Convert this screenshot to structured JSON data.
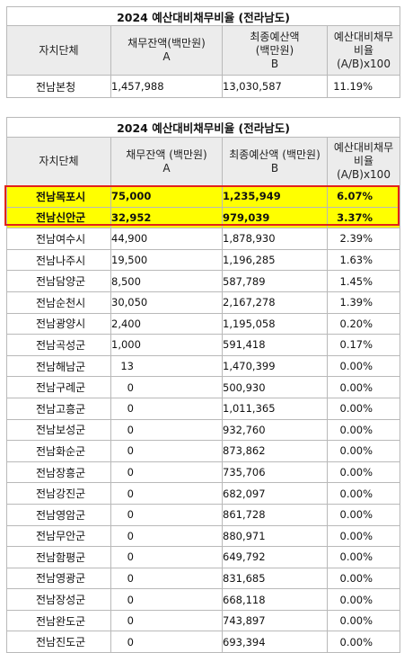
{
  "table1": {
    "title": "2024 예산대비채무비율 (전라남도)",
    "headers": [
      {
        "line1": "자치단체",
        "line2": "",
        "line3": ""
      },
      {
        "line1": "채무잔액(백만원)",
        "line2": "A",
        "line3": ""
      },
      {
        "line1": "최종예산액",
        "line2": "(백만원)",
        "line3": "B"
      },
      {
        "line1": "예산대비채무",
        "line2": "비율",
        "line3": "(A/B)x100"
      }
    ],
    "rows": [
      {
        "name": "전남본청",
        "debt": "1,457,988",
        "budget": "13,030,587",
        "ratio": "11.19%"
      }
    ]
  },
  "table2": {
    "title": "2024 예산대비채무비율 (전라남도)",
    "headers": [
      {
        "line1": "자치단체",
        "line2": "",
        "line3": ""
      },
      {
        "line1": "채무잔액 (백만원)",
        "line2": "A",
        "line3": ""
      },
      {
        "line1": "최종예산액 (백만원)",
        "line2": "B",
        "line3": ""
      },
      {
        "line1": "예산대비채무",
        "line2": "비율",
        "line3": "(A/B)x100"
      }
    ],
    "highlight_colors": {
      "fill": "#ffff00",
      "border": "#e2231a"
    },
    "rows": [
      {
        "name": "전남목포시",
        "debt": "75,000",
        "budget": "1,235,949",
        "ratio": "6.07%",
        "highlight": true
      },
      {
        "name": "전남신안군",
        "debt": "32,952",
        "budget": "979,039",
        "ratio": "3.37%",
        "highlight": true
      },
      {
        "name": "전남여수시",
        "debt": "44,900",
        "budget": "1,878,930",
        "ratio": "2.39%"
      },
      {
        "name": "전남나주시",
        "debt": "19,500",
        "budget": "1,196,285",
        "ratio": "1.63%"
      },
      {
        "name": "전남담양군",
        "debt": "8,500",
        "budget": "587,789",
        "ratio": "1.45%"
      },
      {
        "name": "전남순천시",
        "debt": "30,050",
        "budget": "2,167,278",
        "ratio": "1.39%"
      },
      {
        "name": "전남광양시",
        "debt": "2,400",
        "budget": "1,195,058",
        "ratio": "0.20%"
      },
      {
        "name": "전남곡성군",
        "debt": "1,000",
        "budget": "591,418",
        "ratio": "0.17%"
      },
      {
        "name": "전남해남군",
        "debt": "13",
        "budget": "1,470,399",
        "ratio": "0.00%"
      },
      {
        "name": "전남구례군",
        "debt": "0",
        "budget": "500,930",
        "ratio": "0.00%"
      },
      {
        "name": "전남고흥군",
        "debt": "0",
        "budget": "1,011,365",
        "ratio": "0.00%"
      },
      {
        "name": "전남보성군",
        "debt": "0",
        "budget": "932,760",
        "ratio": "0.00%"
      },
      {
        "name": "전남화순군",
        "debt": "0",
        "budget": "873,862",
        "ratio": "0.00%"
      },
      {
        "name": "전남장흥군",
        "debt": "0",
        "budget": "735,706",
        "ratio": "0.00%"
      },
      {
        "name": "전남강진군",
        "debt": "0",
        "budget": "682,097",
        "ratio": "0.00%"
      },
      {
        "name": "전남영암군",
        "debt": "0",
        "budget": "861,728",
        "ratio": "0.00%"
      },
      {
        "name": "전남무안군",
        "debt": "0",
        "budget": "880,971",
        "ratio": "0.00%"
      },
      {
        "name": "전남함평군",
        "debt": "0",
        "budget": "649,792",
        "ratio": "0.00%"
      },
      {
        "name": "전남영광군",
        "debt": "0",
        "budget": "831,685",
        "ratio": "0.00%"
      },
      {
        "name": "전남장성군",
        "debt": "0",
        "budget": "668,118",
        "ratio": "0.00%"
      },
      {
        "name": "전남완도군",
        "debt": "0",
        "budget": "743,897",
        "ratio": "0.00%"
      },
      {
        "name": "전남진도군",
        "debt": "0",
        "budget": "693,394",
        "ratio": "0.00%"
      }
    ]
  }
}
